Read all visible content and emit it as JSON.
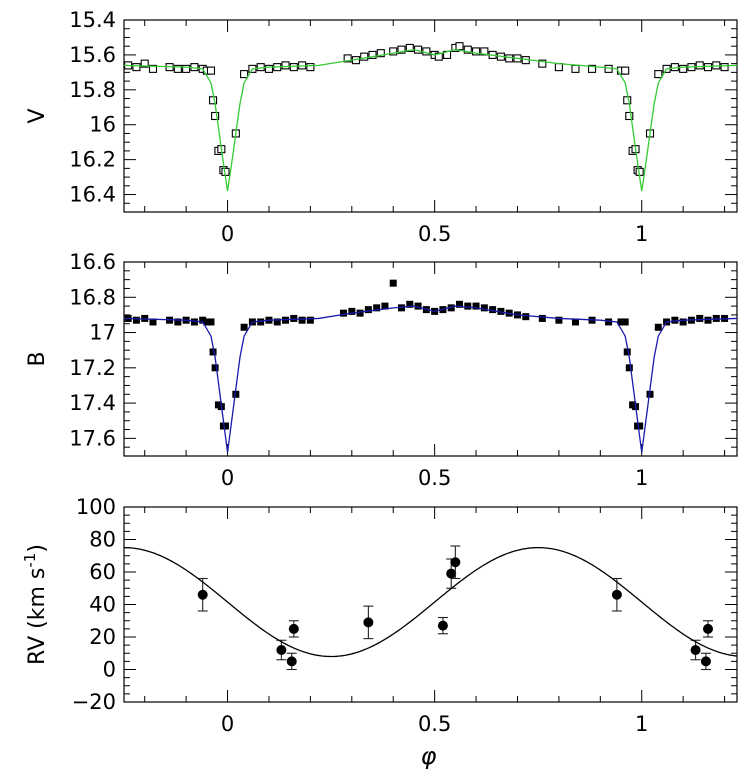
{
  "chart_data": [
    {
      "type": "scatter",
      "xlabel": "",
      "ylabel": "V",
      "xlim": [
        -0.25,
        1.23
      ],
      "ylim": [
        15.4,
        16.5
      ],
      "y_inverted": true,
      "x_ticks": [
        "0",
        "0.5",
        "1"
      ],
      "y_ticks": [
        "15.4",
        "15.6",
        "15.8",
        "16",
        "16.2",
        "16.4"
      ],
      "series": [
        {
          "marker": "open-square",
          "points": [
            [
              -0.24,
              15.66
            ],
            [
              -0.22,
              15.67
            ],
            [
              -0.2,
              15.65
            ],
            [
              -0.18,
              15.68
            ],
            [
              -0.14,
              15.67
            ],
            [
              -0.12,
              15.68
            ],
            [
              -0.1,
              15.68
            ],
            [
              -0.08,
              15.67
            ],
            [
              -0.06,
              15.68
            ],
            [
              -0.05,
              15.69
            ],
            [
              -0.04,
              15.69
            ],
            [
              -0.035,
              15.86
            ],
            [
              -0.03,
              15.95
            ],
            [
              -0.022,
              16.15
            ],
            [
              -0.015,
              16.14
            ],
            [
              -0.01,
              16.26
            ],
            [
              -0.005,
              16.27
            ],
            [
              0.02,
              16.05
            ],
            [
              0.04,
              15.71
            ],
            [
              0.06,
              15.68
            ],
            [
              0.08,
              15.67
            ],
            [
              0.1,
              15.68
            ],
            [
              0.12,
              15.67
            ],
            [
              0.14,
              15.66
            ],
            [
              0.16,
              15.67
            ],
            [
              0.18,
              15.66
            ],
            [
              0.2,
              15.67
            ],
            [
              0.29,
              15.62
            ],
            [
              0.31,
              15.63
            ],
            [
              0.33,
              15.61
            ],
            [
              0.35,
              15.6
            ],
            [
              0.37,
              15.59
            ],
            [
              0.4,
              15.58
            ],
            [
              0.42,
              15.57
            ],
            [
              0.44,
              15.56
            ],
            [
              0.46,
              15.57
            ],
            [
              0.48,
              15.58
            ],
            [
              0.5,
              15.6
            ],
            [
              0.51,
              15.61
            ],
            [
              0.53,
              15.6
            ],
            [
              0.55,
              15.56
            ],
            [
              0.56,
              15.55
            ],
            [
              0.58,
              15.57
            ],
            [
              0.6,
              15.58
            ],
            [
              0.62,
              15.58
            ],
            [
              0.64,
              15.6
            ],
            [
              0.66,
              15.61
            ],
            [
              0.68,
              15.62
            ],
            [
              0.7,
              15.62
            ],
            [
              0.72,
              15.63
            ],
            [
              0.76,
              15.65
            ],
            [
              0.8,
              15.67
            ],
            [
              0.84,
              15.68
            ],
            [
              0.88,
              15.68
            ],
            [
              0.92,
              15.68
            ],
            [
              0.95,
              15.69
            ],
            [
              0.96,
              15.69
            ],
            [
              0.965,
              15.86
            ],
            [
              0.97,
              15.95
            ],
            [
              0.978,
              16.15
            ],
            [
              0.985,
              16.14
            ],
            [
              0.99,
              16.26
            ],
            [
              0.995,
              16.27
            ],
            [
              1.02,
              16.05
            ],
            [
              1.04,
              15.71
            ],
            [
              1.06,
              15.68
            ],
            [
              1.08,
              15.67
            ],
            [
              1.1,
              15.68
            ],
            [
              1.12,
              15.67
            ],
            [
              1.14,
              15.66
            ],
            [
              1.16,
              15.67
            ],
            [
              1.18,
              15.66
            ],
            [
              1.2,
              15.67
            ]
          ]
        },
        {
          "type": "line",
          "color": "#33cc33",
          "points": [
            [
              -0.25,
              15.66
            ],
            [
              -0.1,
              15.67
            ],
            [
              -0.06,
              15.68
            ],
            [
              -0.04,
              15.76
            ],
            [
              -0.03,
              15.88
            ],
            [
              -0.02,
              16.05
            ],
            [
              -0.01,
              16.22
            ],
            [
              0,
              16.38
            ],
            [
              0.01,
              16.22
            ],
            [
              0.02,
              16.05
            ],
            [
              0.03,
              15.88
            ],
            [
              0.04,
              15.76
            ],
            [
              0.06,
              15.68
            ],
            [
              0.1,
              15.67
            ],
            [
              0.22,
              15.66
            ],
            [
              0.3,
              15.63
            ],
            [
              0.4,
              15.59
            ],
            [
              0.45,
              15.57
            ],
            [
              0.5,
              15.6
            ],
            [
              0.55,
              15.57
            ],
            [
              0.6,
              15.59
            ],
            [
              0.7,
              15.62
            ],
            [
              0.8,
              15.65
            ],
            [
              0.9,
              15.67
            ],
            [
              0.94,
              15.68
            ],
            [
              0.96,
              15.76
            ],
            [
              0.97,
              15.88
            ],
            [
              0.98,
              16.05
            ],
            [
              0.99,
              16.22
            ],
            [
              1,
              16.38
            ],
            [
              1.01,
              16.22
            ],
            [
              1.02,
              16.05
            ],
            [
              1.03,
              15.88
            ],
            [
              1.04,
              15.76
            ],
            [
              1.06,
              15.68
            ],
            [
              1.1,
              15.67
            ],
            [
              1.23,
              15.66
            ]
          ]
        }
      ]
    },
    {
      "type": "scatter",
      "xlabel": "",
      "ylabel": "B",
      "xlim": [
        -0.25,
        1.23
      ],
      "ylim": [
        16.6,
        17.7
      ],
      "y_inverted": true,
      "x_ticks": [
        "0",
        "0.5",
        "1"
      ],
      "y_ticks": [
        "16.6",
        "16.8",
        "17",
        "17.2",
        "17.4",
        "17.6"
      ],
      "series": [
        {
          "marker": "filled-square",
          "points": [
            [
              -0.24,
              16.92
            ],
            [
              -0.22,
              16.93
            ],
            [
              -0.2,
              16.92
            ],
            [
              -0.18,
              16.94
            ],
            [
              -0.14,
              16.93
            ],
            [
              -0.12,
              16.94
            ],
            [
              -0.1,
              16.93
            ],
            [
              -0.08,
              16.94
            ],
            [
              -0.06,
              16.93
            ],
            [
              -0.05,
              16.94
            ],
            [
              -0.04,
              16.94
            ],
            [
              -0.035,
              17.11
            ],
            [
              -0.03,
              17.2
            ],
            [
              -0.022,
              17.41
            ],
            [
              -0.015,
              17.42
            ],
            [
              -0.01,
              17.53
            ],
            [
              -0.005,
              17.53
            ],
            [
              0.02,
              17.35
            ],
            [
              0.04,
              16.97
            ],
            [
              0.06,
              16.94
            ],
            [
              0.08,
              16.94
            ],
            [
              0.1,
              16.93
            ],
            [
              0.12,
              16.94
            ],
            [
              0.14,
              16.93
            ],
            [
              0.16,
              16.92
            ],
            [
              0.18,
              16.93
            ],
            [
              0.2,
              16.93
            ],
            [
              0.28,
              16.89
            ],
            [
              0.3,
              16.88
            ],
            [
              0.32,
              16.89
            ],
            [
              0.34,
              16.87
            ],
            [
              0.36,
              16.86
            ],
            [
              0.38,
              16.85
            ],
            [
              0.4,
              16.72
            ],
            [
              0.42,
              16.86
            ],
            [
              0.44,
              16.84
            ],
            [
              0.46,
              16.85
            ],
            [
              0.48,
              16.87
            ],
            [
              0.5,
              16.88
            ],
            [
              0.52,
              16.87
            ],
            [
              0.54,
              16.86
            ],
            [
              0.56,
              16.84
            ],
            [
              0.58,
              16.85
            ],
            [
              0.6,
              16.85
            ],
            [
              0.62,
              16.86
            ],
            [
              0.64,
              16.87
            ],
            [
              0.66,
              16.88
            ],
            [
              0.68,
              16.89
            ],
            [
              0.7,
              16.9
            ],
            [
              0.72,
              16.91
            ],
            [
              0.76,
              16.92
            ],
            [
              0.8,
              16.93
            ],
            [
              0.84,
              16.94
            ],
            [
              0.88,
              16.93
            ],
            [
              0.92,
              16.94
            ],
            [
              0.95,
              16.94
            ],
            [
              0.96,
              16.94
            ],
            [
              0.965,
              17.11
            ],
            [
              0.97,
              17.2
            ],
            [
              0.978,
              17.41
            ],
            [
              0.985,
              17.42
            ],
            [
              0.99,
              17.53
            ],
            [
              0.995,
              17.53
            ],
            [
              1.02,
              17.35
            ],
            [
              1.04,
              16.97
            ],
            [
              1.06,
              16.94
            ],
            [
              1.08,
              16.93
            ],
            [
              1.1,
              16.94
            ],
            [
              1.12,
              16.93
            ],
            [
              1.14,
              16.92
            ],
            [
              1.16,
              16.93
            ],
            [
              1.18,
              16.92
            ],
            [
              1.2,
              16.92
            ]
          ]
        },
        {
          "type": "line",
          "color": "#1a1aaa",
          "points": [
            [
              -0.25,
              16.92
            ],
            [
              -0.1,
              16.93
            ],
            [
              -0.06,
              16.94
            ],
            [
              -0.04,
              17.02
            ],
            [
              -0.03,
              17.14
            ],
            [
              -0.02,
              17.32
            ],
            [
              -0.01,
              17.5
            ],
            [
              0,
              17.68
            ],
            [
              0.01,
              17.5
            ],
            [
              0.02,
              17.32
            ],
            [
              0.03,
              17.14
            ],
            [
              0.04,
              17.02
            ],
            [
              0.06,
              16.94
            ],
            [
              0.1,
              16.93
            ],
            [
              0.22,
              16.92
            ],
            [
              0.3,
              16.89
            ],
            [
              0.4,
              16.86
            ],
            [
              0.45,
              16.85
            ],
            [
              0.5,
              16.88
            ],
            [
              0.55,
              16.85
            ],
            [
              0.6,
              16.86
            ],
            [
              0.7,
              16.9
            ],
            [
              0.8,
              16.92
            ],
            [
              0.9,
              16.93
            ],
            [
              0.94,
              16.94
            ],
            [
              0.96,
              17.02
            ],
            [
              0.97,
              17.14
            ],
            [
              0.98,
              17.32
            ],
            [
              0.99,
              17.5
            ],
            [
              1,
              17.68
            ],
            [
              1.01,
              17.5
            ],
            [
              1.02,
              17.32
            ],
            [
              1.03,
              17.14
            ],
            [
              1.04,
              17.02
            ],
            [
              1.06,
              16.94
            ],
            [
              1.1,
              16.93
            ],
            [
              1.23,
              16.92
            ]
          ]
        }
      ]
    },
    {
      "type": "scatter",
      "xlabel": "φ",
      "ylabel": "RV (km s",
      "ylabel_sup": "-1",
      "ylabel_close": ")",
      "xlim": [
        -0.25,
        1.23
      ],
      "ylim": [
        -20,
        100
      ],
      "x_ticks": [
        "0",
        "0.5",
        "1"
      ],
      "y_ticks": [
        "−20",
        "0",
        "20",
        "40",
        "60",
        "80",
        "100"
      ],
      "series": [
        {
          "marker": "filled-circle",
          "points": [
            {
              "x": -0.06,
              "y": 46,
              "err": 10
            },
            {
              "x": 0.13,
              "y": 12,
              "err": 6
            },
            {
              "x": 0.155,
              "y": 5,
              "err": 5
            },
            {
              "x": 0.16,
              "y": 25,
              "err": 5
            },
            {
              "x": 0.34,
              "y": 29,
              "err": 10
            },
            {
              "x": 0.52,
              "y": 27,
              "err": 5
            },
            {
              "x": 0.54,
              "y": 59,
              "err": 9
            },
            {
              "x": 0.55,
              "y": 66,
              "err": 10
            },
            {
              "x": 0.94,
              "y": 46,
              "err": 10
            },
            {
              "x": 1.13,
              "y": 12,
              "err": 6
            },
            {
              "x": 1.155,
              "y": 5,
              "err": 5
            },
            {
              "x": 1.16,
              "y": 25,
              "err": 5
            }
          ]
        },
        {
          "type": "line",
          "model": "sine",
          "gamma": 41.5,
          "K": 33.5,
          "color": "#000000"
        }
      ]
    }
  ]
}
